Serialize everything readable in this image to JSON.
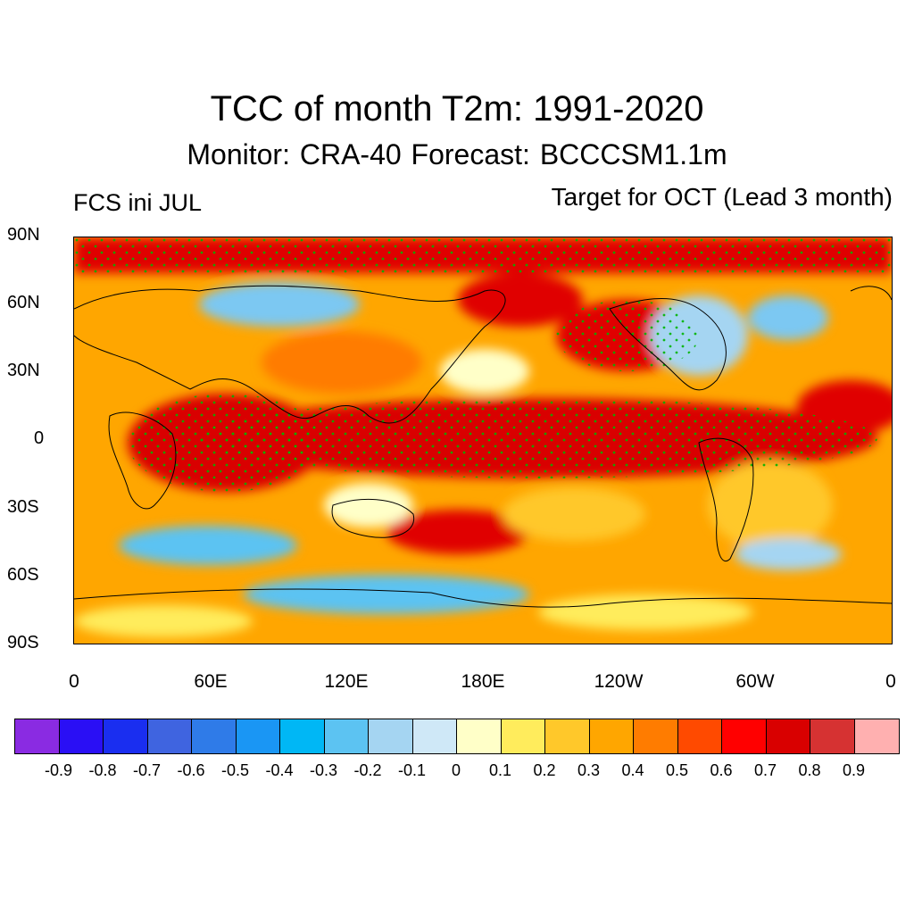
{
  "header": {
    "title": "TCC of month T2m: 1991-2020",
    "subtitle": "Monitor: CRA-40   Forecast: BCCCSM1.1m",
    "left_label": "FCS ini JUL",
    "right_label": "Target for OCT (Lead 3 month)"
  },
  "axes": {
    "lat_labels": [
      "90N",
      "60N",
      "30N",
      "0",
      "30S",
      "60S",
      "90S"
    ],
    "lon_labels": [
      "0",
      "60E",
      "120E",
      "180E",
      "120W",
      "60W",
      "0"
    ]
  },
  "colorbar": {
    "colors": [
      "#8a2be2",
      "#2a0ff5",
      "#1a2ef0",
      "#3f64e0",
      "#2f7be8",
      "#1a96f4",
      "#00b7f5",
      "#5cc3f2",
      "#a5d5f2",
      "#cfe8f7",
      "#ffffc8",
      "#ffec5c",
      "#ffc82a",
      "#ffa600",
      "#ff7c00",
      "#ff4a00",
      "#ff0000",
      "#d90000",
      "#d63232",
      "#ffb0b0"
    ],
    "labels": [
      "-0.9",
      "-0.8",
      "-0.7",
      "-0.6",
      "-0.5",
      "-0.4",
      "-0.3",
      "-0.2",
      "-0.1",
      "0",
      "0.1",
      "0.2",
      "0.3",
      "0.4",
      "0.5",
      "0.6",
      "0.7",
      "0.8",
      "0.9"
    ]
  },
  "map": {
    "field": "TCC of T2m (correlation)",
    "stipple_color": "#00b400"
  }
}
